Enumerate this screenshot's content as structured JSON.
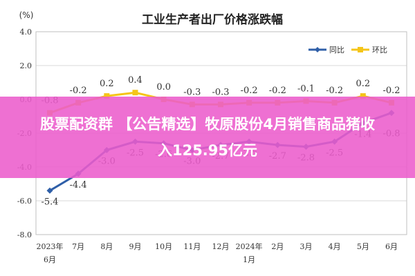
{
  "chart_data": {
    "type": "line",
    "title": "工业生产者出厂价格涨跌幅",
    "ylabel": "(%)",
    "categories": [
      "2023年\n6月",
      "7月",
      "8月",
      "9月",
      "10月",
      "11月",
      "12月",
      "2024年\n1月",
      "2月",
      "3月",
      "4月",
      "5月",
      "6月"
    ],
    "ylim": [
      -8.0,
      4.0
    ],
    "yticks": [
      "4.0",
      "2.0",
      "0.0",
      "-2.0",
      "-4.0",
      "-6.0",
      "-8.0"
    ],
    "grid": true,
    "legend_position": "top-right",
    "series": [
      {
        "name": "同比",
        "color": "#2f5fa8",
        "values": [
          -5.4,
          -4.4,
          -3.0,
          -2.5,
          -2.6,
          -3.0,
          -2.7,
          -2.5,
          -2.7,
          -2.8,
          -2.5,
          -1.4,
          -0.8
        ],
        "labels": [
          "-5.4",
          "-4.4",
          "-3.0",
          "-2.5",
          "-2.6",
          "-3.0",
          "-2.7",
          "-2.5",
          "-2.7",
          "-2.8",
          "-2.5",
          "-1.4",
          "-0.8"
        ]
      },
      {
        "name": "环比",
        "color": "#f5c518",
        "values": [
          -0.8,
          -0.2,
          0.2,
          0.4,
          0.0,
          -0.3,
          -0.3,
          -0.2,
          -0.2,
          -0.1,
          -0.2,
          0.2,
          -0.2
        ],
        "labels": [
          "-0.8",
          "-0.2",
          "0.2",
          "0.4",
          "0.0",
          "-0.3",
          "-0.3",
          "-0.2",
          "-0.2",
          "-0.1",
          "-0.2",
          "0.2",
          "-0.2"
        ]
      }
    ]
  },
  "banner": {
    "line1": "股票配资群 【公告精选】牧原股份4月销售商品猪收",
    "line2": "入125.95亿元"
  }
}
